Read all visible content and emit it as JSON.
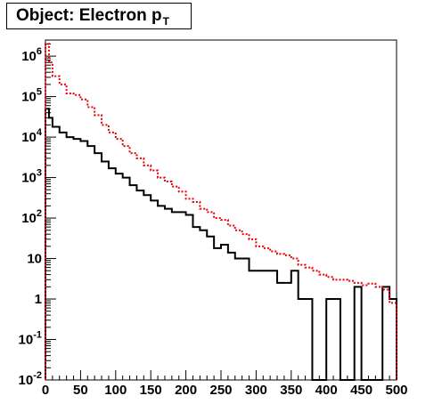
{
  "title": {
    "main": "Object: Electron p",
    "sub": "T"
  },
  "colors": {
    "series_black": "#000000",
    "series_red": "#e8000b"
  },
  "chart_data": {
    "type": "step",
    "title": "Object: Electron pT",
    "xlabel": "",
    "ylabel": "",
    "xlim": [
      0,
      500
    ],
    "ylim": [
      0.01,
      2500000
    ],
    "yscale": "log",
    "bin_width": 10,
    "x_ticks": [
      "0",
      "50",
      "100",
      "150",
      "200",
      "250",
      "300",
      "350",
      "400",
      "450",
      "500"
    ],
    "y_ticks": [
      {
        "base": "10",
        "exp": "-2"
      },
      {
        "base": "10",
        "exp": "-1"
      },
      {
        "base": "1",
        "exp": ""
      },
      {
        "base": "10",
        "exp": ""
      },
      {
        "base": "10",
        "exp": "2"
      },
      {
        "base": "10",
        "exp": "3"
      },
      {
        "base": "10",
        "exp": "4"
      },
      {
        "base": "10",
        "exp": "5"
      },
      {
        "base": "10",
        "exp": "6"
      }
    ],
    "series": [
      {
        "style": "solid-black",
        "x_edges": [
          0,
          5,
          10,
          20,
          30,
          40,
          50,
          60,
          70,
          80,
          90,
          100,
          110,
          120,
          130,
          140,
          150,
          160,
          170,
          180,
          190,
          200,
          210,
          220,
          230,
          240,
          250,
          260,
          270,
          280,
          290,
          300,
          310,
          320,
          330,
          340,
          350,
          360,
          370,
          380,
          390,
          400,
          410,
          420,
          430,
          440,
          450,
          460,
          470,
          480,
          490,
          500
        ],
        "values": [
          50000,
          30000,
          18000,
          13000,
          10000,
          9000,
          8000,
          6000,
          4000,
          2500,
          1700,
          1250,
          1000,
          650,
          480,
          370,
          270,
          200,
          170,
          140,
          140,
          120,
          60,
          50,
          35,
          18,
          22,
          14,
          10,
          10,
          5,
          5,
          5,
          5,
          2.5,
          2.5,
          5,
          1,
          1,
          0.01,
          0.01,
          1,
          1,
          0.01,
          0.01,
          2,
          0.01,
          0.01,
          0.01,
          2,
          1
        ]
      },
      {
        "style": "dashed-red",
        "x_edges": [
          0,
          5,
          10,
          20,
          30,
          40,
          50,
          60,
          70,
          80,
          90,
          100,
          110,
          120,
          130,
          140,
          150,
          160,
          170,
          180,
          190,
          200,
          210,
          220,
          230,
          240,
          250,
          260,
          270,
          280,
          290,
          300,
          310,
          320,
          330,
          340,
          350,
          360,
          370,
          380,
          390,
          400,
          410,
          420,
          430,
          440,
          450,
          460,
          470,
          480,
          490,
          500
        ],
        "values": [
          2000000,
          700000,
          320000,
          200000,
          120000,
          110000,
          85000,
          55000,
          35000,
          20000,
          13000,
          9000,
          6000,
          4000,
          3000,
          2000,
          1500,
          1000,
          800,
          600,
          450,
          300,
          250,
          170,
          140,
          100,
          90,
          65,
          50,
          40,
          30,
          20,
          18,
          15,
          13,
          12,
          10,
          7,
          6,
          5,
          4,
          3.5,
          3,
          3,
          2.8,
          2.5,
          2.2,
          2.4,
          2,
          1.7,
          0.8
        ]
      }
    ]
  }
}
